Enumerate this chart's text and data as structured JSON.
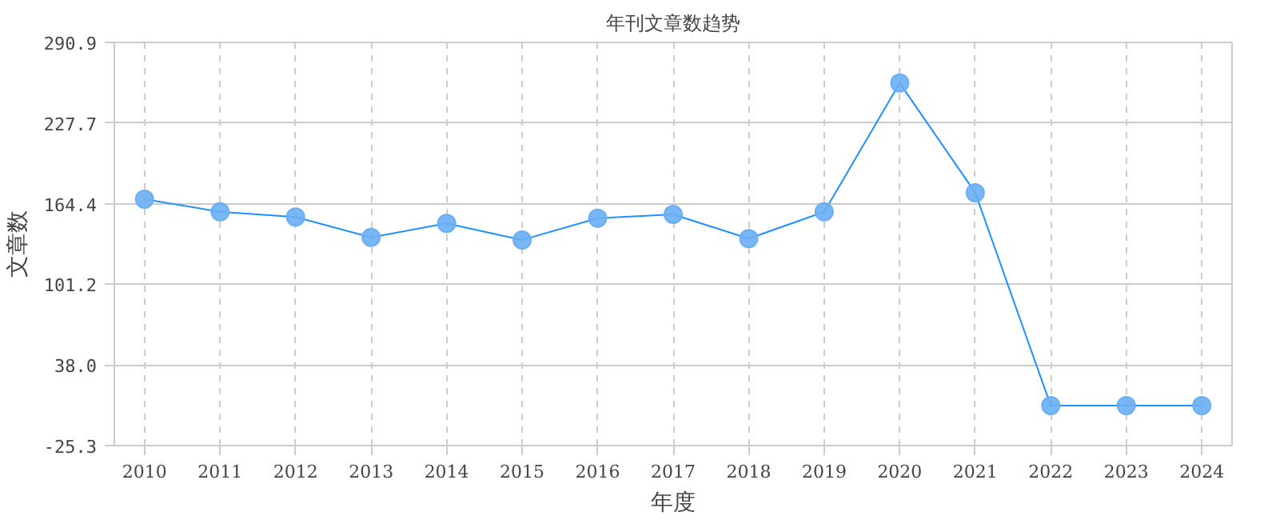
{
  "chart_data": {
    "type": "line",
    "title": "年刊文章数趋势",
    "xlabel": "年度",
    "ylabel": "文章数",
    "categories": [
      "2010",
      "2011",
      "2012",
      "2013",
      "2014",
      "2015",
      "2016",
      "2017",
      "2018",
      "2019",
      "2020",
      "2021",
      "2022",
      "2023",
      "2024"
    ],
    "series": [
      {
        "color": "#1e90ff",
        "values": [
          168,
          158,
          154,
          138,
          149,
          136,
          153,
          156,
          137,
          158,
          259,
          173,
          6,
          6,
          6
        ]
      }
    ],
    "ylim": [
      -25.3,
      290.9
    ],
    "yticks": [
      {
        "value": -25.3,
        "label": "-25.3"
      },
      {
        "value": 38.0,
        "label": "38.0"
      },
      {
        "value": 101.2,
        "label": "101.2"
      },
      {
        "value": 164.4,
        "label": "164.4"
      },
      {
        "value": 227.7,
        "label": "227.7"
      },
      {
        "value": 290.9,
        "label": "290.9"
      }
    ],
    "grid": true,
    "marker": "circle",
    "line_style": "solid"
  }
}
